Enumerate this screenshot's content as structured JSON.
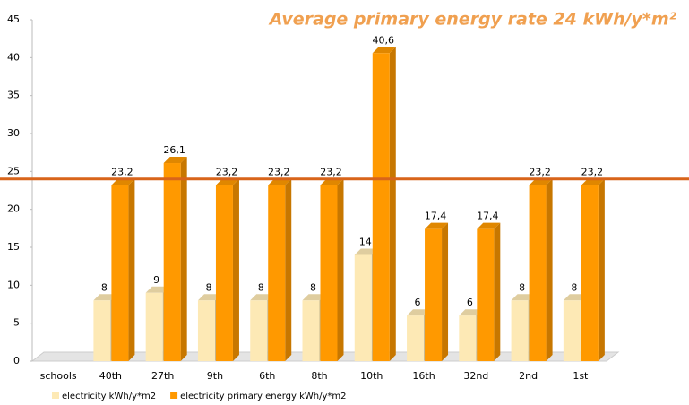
{
  "chart_data": {
    "type": "bar3d",
    "annotation": "Average primary energy rate 24 kWh/y*m²",
    "reference_line": 24,
    "reference_color": "#d8641a",
    "categories": [
      "schools",
      "40th",
      "27th",
      "9th",
      "6th",
      "8th",
      "10th",
      "16th",
      "32nd",
      "2nd",
      "1st"
    ],
    "series": [
      {
        "name": "electricity kWh/y*m2",
        "color": "#fde9b5",
        "values": [
          null,
          8,
          9,
          8,
          8,
          8,
          14,
          6,
          6,
          8,
          8
        ]
      },
      {
        "name": "electricity primary energy kWh/y*m2",
        "color": "#ff9900",
        "values": [
          null,
          23.2,
          26.1,
          23.2,
          23.2,
          23.2,
          40.6,
          17.4,
          17.4,
          23.2,
          23.2
        ],
        "value_labels": [
          null,
          "23,2",
          "26,1",
          "23,2",
          "23,2",
          "23,2",
          "40,6",
          "17,4",
          "17,4",
          "23,2",
          "23,2"
        ]
      }
    ],
    "ylim": [
      0,
      45
    ],
    "yticks": [
      0,
      5,
      10,
      15,
      20,
      25,
      30,
      35,
      40,
      45
    ]
  }
}
